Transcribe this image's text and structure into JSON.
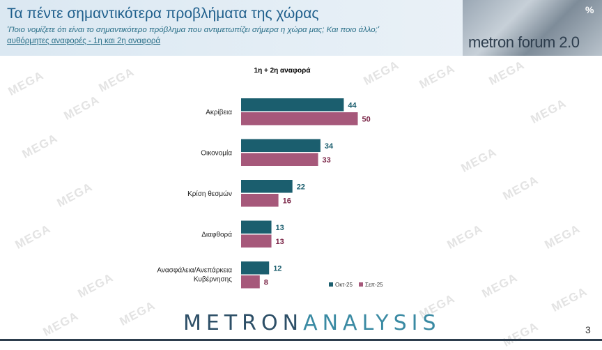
{
  "header": {
    "title": "Τα πέντε σημαντικότερα προβλήματα της χώρας",
    "subtitle": "'Ποιο νομίζετε ότι είναι το σημαντικότερο πρόβλημα που αντιμετωπίζει σήμερα η χώρα μας; Και ποιο άλλο;'",
    "subtitle2": "αυθόρμητες αναφορές - 1η και 2η αναφορά",
    "brand": "metron forum 2.0",
    "brand_icon": "percent-icon"
  },
  "watermark": "MEGA",
  "footer": {
    "logo_part1": "METRON",
    "logo_part2": "ANALYSIS",
    "page_number": "3"
  },
  "chart_data": {
    "type": "bar",
    "orientation": "horizontal",
    "title": "1η + 2η αναφορά",
    "categories": [
      "Ακρίβεια",
      "Οικονομία",
      "Κρίση θεσμών",
      "Διαφθορά",
      "Ανασφάλεια/Ανεπάρκεια Κυβέρνησης"
    ],
    "series": [
      {
        "name": "Οκτ-25",
        "values": [
          44,
          34,
          22,
          13,
          12
        ],
        "color": "#1b5e6e",
        "label_color": "#1b5e6e"
      },
      {
        "name": "Σεπ-25",
        "values": [
          50,
          33,
          16,
          13,
          8
        ],
        "color": "#a6587a",
        "label_color": "#7a2446"
      }
    ],
    "legend_position": "bottom-right",
    "grid": false
  }
}
